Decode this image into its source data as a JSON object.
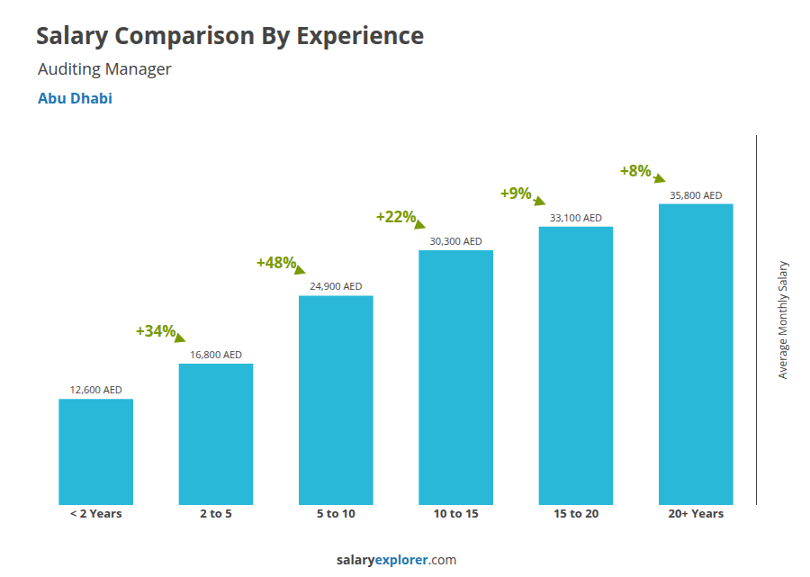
{
  "chart_data": {
    "type": "bar",
    "title": "Salary Comparison By Experience",
    "subtitle": "Auditing Manager",
    "ylabel": "Average Monthly Salary",
    "annotations": {
      "city": "Abu Dhabi",
      "footer": [
        "salary",
        "explorer",
        ".com"
      ]
    },
    "categories": [
      "< 2 Years",
      "2 to 5",
      "5 to 10",
      "10 to 15",
      "15 to 20",
      "20+ Years"
    ],
    "values": [
      12600,
      16800,
      24900,
      30300,
      33100,
      35800
    ],
    "value_labels": [
      "12,600 AED",
      "16,800 AED",
      "24,900 AED",
      "30,300 AED",
      "33,100 AED",
      "35,800 AED"
    ],
    "data_labels": true,
    "changes": [
      {
        "value": 34,
        "label": "+34%"
      },
      {
        "value": 48,
        "label": "+48%"
      },
      {
        "value": 22,
        "label": "+22%"
      },
      {
        "value": 9,
        "label": "+9%"
      },
      {
        "value": 8,
        "label": "+8%"
      }
    ],
    "color": "#29b8d8",
    "ylim": [
      0,
      44000
    ],
    "grid": false,
    "tick_labels": "x"
  }
}
